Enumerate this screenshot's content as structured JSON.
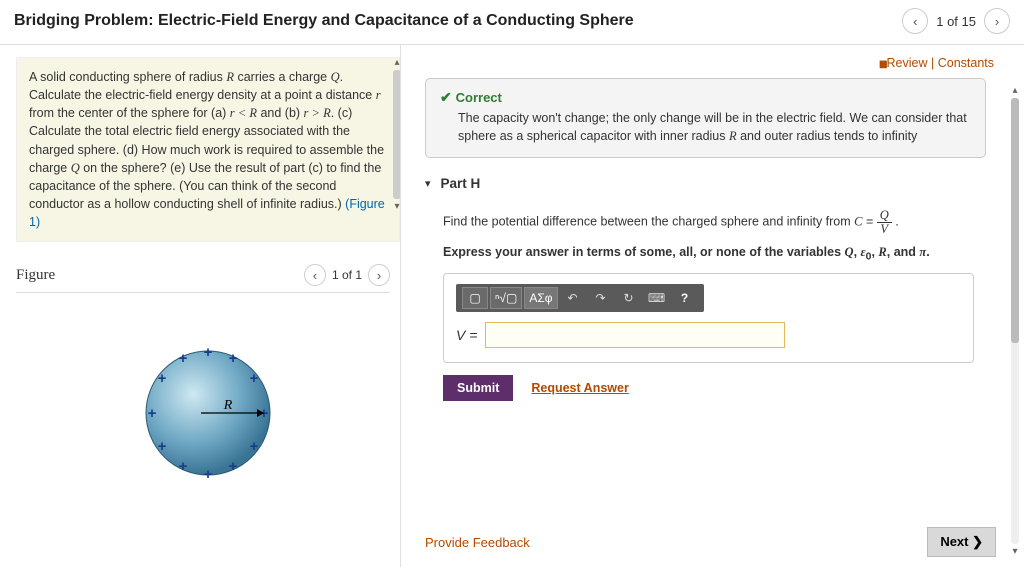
{
  "header": {
    "title": "Bridging Problem: Electric-Field Energy and Capacitance of a Conducting Sphere",
    "pager_text": "1 of 15"
  },
  "problem": {
    "text_parts": [
      "A solid conducting sphere of radius ",
      "R",
      " carries a charge ",
      "Q",
      ". Calculate the electric-field energy density at a point a distance ",
      "r",
      " from the center of the sphere for (a) ",
      "r < R",
      " and (b) ",
      "r > R",
      ". (c) Calculate the total electric field energy associated with the charged sphere. (d) How much work is required to assemble the charge ",
      "Q",
      " on the sphere? (e) Use the result of part (c) to find the capacitance of the sphere. (You can think of the second conductor as a hollow conducting shell of infinite radius.) "
    ],
    "figure_link": "(Figure 1)"
  },
  "figure": {
    "label": "Figure",
    "pager": "1 of 1",
    "radius_label": "R",
    "sphere_fill_dark": "#4a8bb0",
    "sphere_fill_light": "#a9d3e4",
    "plus_color": "#1a3a8c"
  },
  "review": {
    "label": "Review | Constants"
  },
  "correct": {
    "heading": "Correct",
    "text": "The capacity won't change; the only change will be in the electric field. We can consider that sphere as a spherical capacitor with inner radius R and outer radius tends to infinity"
  },
  "part": {
    "label": "Part H",
    "prompt_prefix": "Find the potential difference between the charged sphere and infinity from ",
    "prompt_eq_lhs": "C = ",
    "frac_n": "Q",
    "frac_d": "V",
    "instruct": "Express your answer in terms of some, all, or none of the variables Q, ε₀, R, and π.",
    "answer_label": "V =",
    "submit": "Submit",
    "request": "Request Answer"
  },
  "toolbar": {
    "t1": "▢",
    "t2": "ⁿ√▢",
    "t3": "ΑΣφ",
    "undo": "↶",
    "redo": "↷",
    "reset": "↻",
    "keyboard": "⌨",
    "help": "?"
  },
  "footer": {
    "feedback": "Provide Feedback",
    "next": "Next ❯"
  }
}
